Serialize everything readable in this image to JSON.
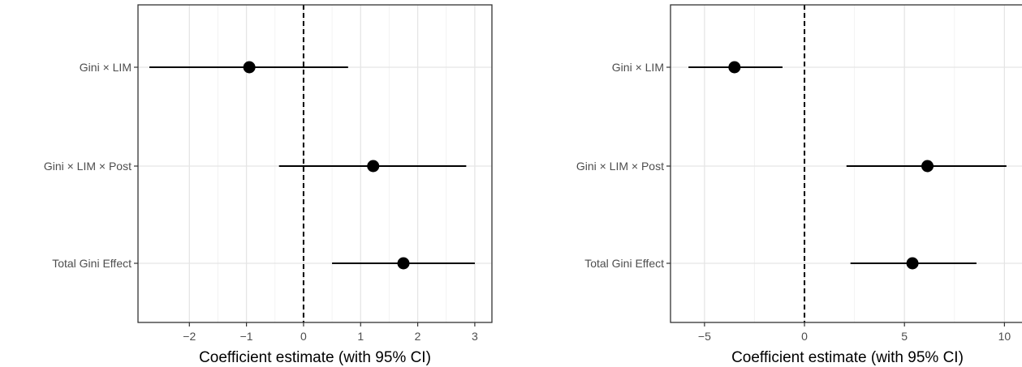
{
  "chart_data": [
    {
      "type": "dot-and-whisker",
      "categories": [
        "Gini × LIM",
        "Gini × LIM × Post",
        "Total Gini Effect"
      ],
      "estimates": [
        -0.95,
        1.22,
        1.75
      ],
      "ci_low": [
        -2.7,
        -0.43,
        0.5
      ],
      "ci_high": [
        0.78,
        2.85,
        3.0
      ],
      "xlabel": "Coefficient estimate (with 95% CI)",
      "ylabel": "",
      "xlim": [
        -2.9,
        3.3
      ],
      "xticks": [
        -2,
        -1,
        0,
        1,
        2,
        3
      ],
      "xtick_labels": [
        "−2",
        "−1",
        "0",
        "1",
        "2",
        "3"
      ],
      "reference_line": 0,
      "grid": true
    },
    {
      "type": "dot-and-whisker",
      "categories": [
        "Gini × LIM",
        "Gini × LIM × Post",
        "Total Gini Effect"
      ],
      "estimates": [
        -3.5,
        6.15,
        5.4
      ],
      "ci_low": [
        -5.8,
        2.1,
        2.3
      ],
      "ci_high": [
        -1.1,
        10.1,
        8.6
      ],
      "xlabel": "Coefficient estimate (with 95% CI)",
      "ylabel": "",
      "xlim": [
        -6.7,
        11.0
      ],
      "xticks": [
        -5,
        0,
        5,
        10
      ],
      "xtick_labels": [
        "−5",
        "0",
        "5",
        "10"
      ],
      "reference_line": 0,
      "grid": true
    }
  ]
}
